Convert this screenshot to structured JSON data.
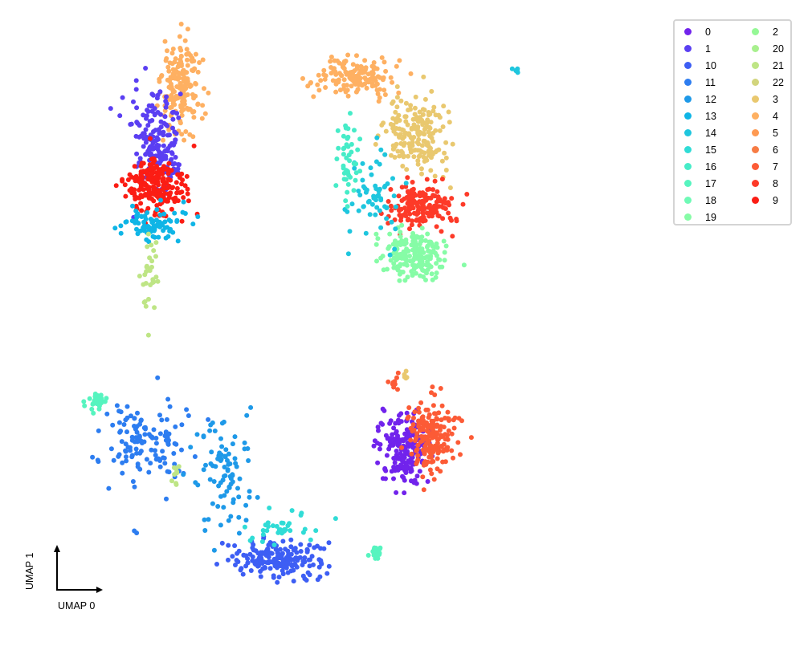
{
  "chart_data": {
    "type": "scatter",
    "title": "",
    "xlabel": "UMAP 0",
    "ylabel": "UMAP 1",
    "xlim": [
      0,
      100
    ],
    "ylim": [
      0,
      100
    ],
    "grid": false,
    "legend_placement": "top-right",
    "legend_columns": 2,
    "series": [
      {
        "name": "0",
        "color": "#7123ec"
      },
      {
        "name": "1",
        "color": "#5a3ff2"
      },
      {
        "name": "10",
        "color": "#3d5ef4"
      },
      {
        "name": "11",
        "color": "#2d7df0"
      },
      {
        "name": "12",
        "color": "#1e99e8"
      },
      {
        "name": "13",
        "color": "#0fb5e6"
      },
      {
        "name": "14",
        "color": "#1ec6de"
      },
      {
        "name": "15",
        "color": "#30dcd6"
      },
      {
        "name": "16",
        "color": "#46ecc8"
      },
      {
        "name": "17",
        "color": "#56f4bf"
      },
      {
        "name": "18",
        "color": "#6ffab6"
      },
      {
        "name": "19",
        "color": "#86fca6"
      },
      {
        "name": "2",
        "color": "#95f896"
      },
      {
        "name": "20",
        "color": "#a8f08e"
      },
      {
        "name": "21",
        "color": "#bee585"
      },
      {
        "name": "22",
        "color": "#d2d57d"
      },
      {
        "name": "3",
        "color": "#e9c86f"
      },
      {
        "name": "4",
        "color": "#feb062"
      },
      {
        "name": "5",
        "color": "#fe9a52"
      },
      {
        "name": "6",
        "color": "#f77c44"
      },
      {
        "name": "7",
        "color": "#fc5b36"
      },
      {
        "name": "8",
        "color": "#fd3a28"
      },
      {
        "name": "9",
        "color": "#fb1d14"
      }
    ],
    "clusters": [
      {
        "label": "4",
        "cx": 22,
        "cy": 88,
        "sx": 2.0,
        "sy": 5.0,
        "n": 180
      },
      {
        "label": "1",
        "cx": 18,
        "cy": 79,
        "sx": 2.2,
        "sy": 5.0,
        "n": 180
      },
      {
        "label": "9",
        "cx": 18,
        "cy": 72,
        "sx": 3.0,
        "sy": 3.0,
        "n": 210
      },
      {
        "label": "13",
        "cx": 17,
        "cy": 66,
        "sx": 3.0,
        "sy": 1.5,
        "n": 90
      },
      {
        "label": "21",
        "cx": 17,
        "cy": 57,
        "sx": 0.8,
        "sy": 4.0,
        "n": 30
      },
      {
        "label": "4",
        "cx": 49,
        "cy": 90,
        "sx": 3.5,
        "sy": 2.0,
        "n": 150
      },
      {
        "label": "3",
        "cx": 59,
        "cy": 81,
        "sx": 3.0,
        "sy": 4.0,
        "n": 190
      },
      {
        "label": "8",
        "cx": 59,
        "cy": 69,
        "sx": 3.0,
        "sy": 2.5,
        "n": 170
      },
      {
        "label": "19",
        "cx": 58,
        "cy": 61,
        "sx": 3.0,
        "sy": 2.5,
        "n": 190
      },
      {
        "label": "14",
        "cx": 52,
        "cy": 70,
        "sx": 2.5,
        "sy": 6.0,
        "n": 60
      },
      {
        "label": "16",
        "cx": 48,
        "cy": 76,
        "sx": 1.2,
        "sy": 5.0,
        "n": 45
      },
      {
        "label": "14",
        "cx": 74,
        "cy": 91,
        "sx": 0.3,
        "sy": 0.4,
        "n": 6
      },
      {
        "label": "17",
        "cx": 9,
        "cy": 37,
        "sx": 0.9,
        "sy": 1.0,
        "n": 30
      },
      {
        "label": "11",
        "cx": 16,
        "cy": 30,
        "sx": 4.5,
        "sy": 4.5,
        "n": 130
      },
      {
        "label": "12",
        "cx": 29,
        "cy": 26,
        "sx": 3.0,
        "sy": 6.0,
        "n": 90
      },
      {
        "label": "21",
        "cx": 21,
        "cy": 25,
        "sx": 0.4,
        "sy": 2.0,
        "n": 10
      },
      {
        "label": "10",
        "cx": 37,
        "cy": 11,
        "sx": 4.0,
        "sy": 1.8,
        "n": 190
      },
      {
        "label": "15",
        "cx": 38,
        "cy": 16,
        "sx": 3.0,
        "sy": 2.0,
        "n": 35
      },
      {
        "label": "17",
        "cx": 52,
        "cy": 12,
        "sx": 0.6,
        "sy": 0.6,
        "n": 25
      },
      {
        "label": "0",
        "cx": 57,
        "cy": 29,
        "sx": 2.5,
        "sy": 3.5,
        "n": 200
      },
      {
        "label": "7",
        "cx": 61,
        "cy": 31,
        "sx": 2.5,
        "sy": 3.5,
        "n": 180
      },
      {
        "label": "7",
        "cx": 55,
        "cy": 40,
        "sx": 0.5,
        "sy": 1.0,
        "n": 10
      },
      {
        "label": "3",
        "cx": 57,
        "cy": 41,
        "sx": 0.3,
        "sy": 0.6,
        "n": 5
      }
    ]
  }
}
